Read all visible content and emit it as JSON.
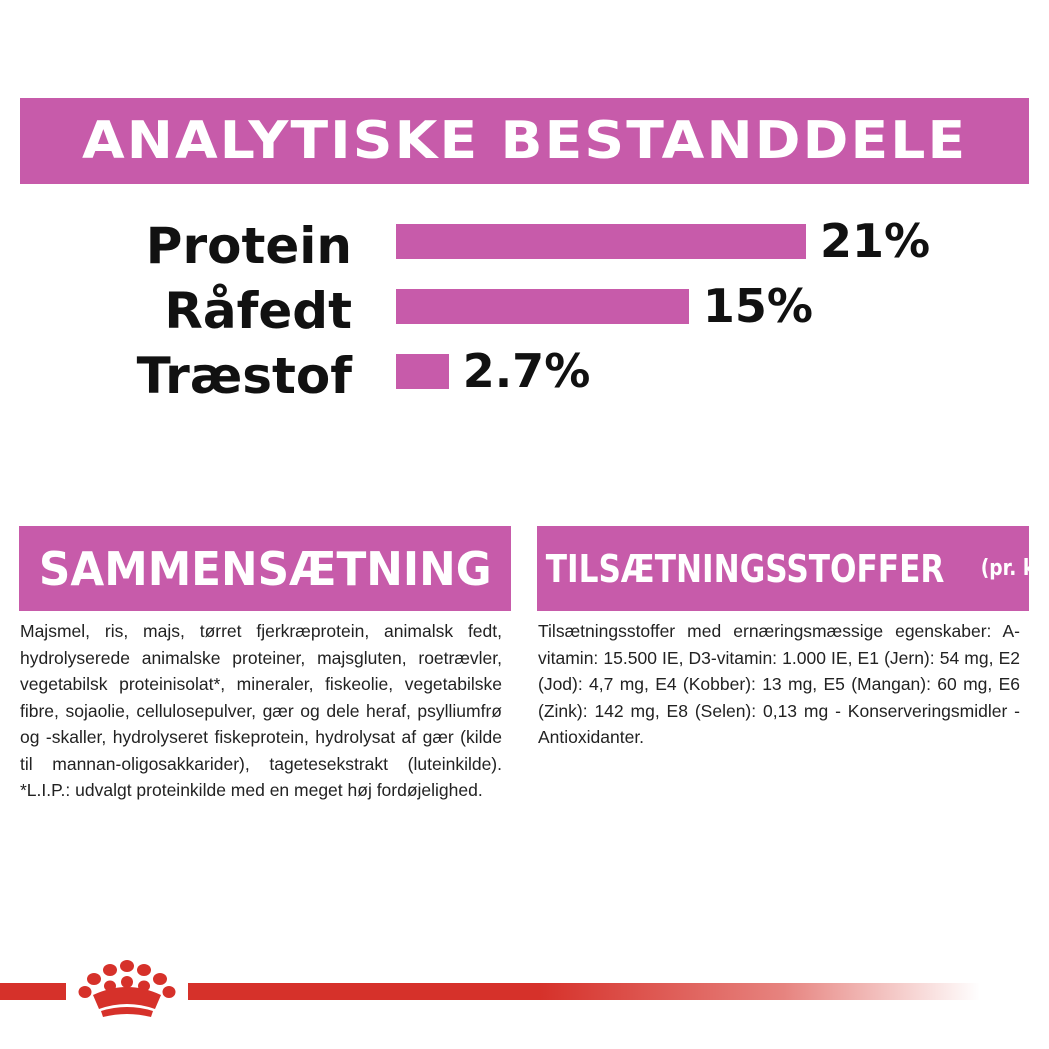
{
  "header": {
    "title": "ANALYTISKE BESTANDDELE"
  },
  "nutrients": [
    {
      "label": "Protein",
      "value_text": "21%",
      "value": 21
    },
    {
      "label": "Råfedt",
      "value_text": "15%",
      "value": 15
    },
    {
      "label": "Træstof",
      "value_text": "2.7%",
      "value": 2.7
    }
  ],
  "composition": {
    "title": "SAMMENSÆTNING",
    "text": "Majsmel, ris, majs, tørret fjerkræprotein, animalsk fedt, hydrolyserede animalske proteiner, majsgluten, roetrævler, vegetabilsk proteinisolat*, mineraler, fiskeolie, vegetabilske fibre, sojaolie, cellulosepulver, gær og dele heraf, psylliumfrø og -skaller, hydrolyseret fiskeprotein, hydrolysat af gær (kilde til mannan-oligosakkarider), tagetesekstrakt (luteinkilde). *L.I.P.: udvalgt proteinkilde med en meget høj fordøjelighed."
  },
  "additives": {
    "title": "TILSÆTNINGSSTOFFER",
    "unit": "(pr. kg)",
    "text": "Tilsætningsstoffer med ernæringsmæssige egenskaber: A-vitamin: 15.500 IE, D3-vitamin: 1.000 IE, E1 (Jern): 54 mg, E2 (Jod): 4,7 mg, E4 (Kobber): 13 mg, E5 (Mangan): 60 mg, E6 (Zink): 142 mg, E8 (Selen): 0,13 mg - Konserveringsmidler - Antioxidanter."
  },
  "colors": {
    "accent": "#c75baa",
    "brand_red": "#d6312a"
  },
  "footer": {
    "logo_icon": "crown-icon"
  }
}
